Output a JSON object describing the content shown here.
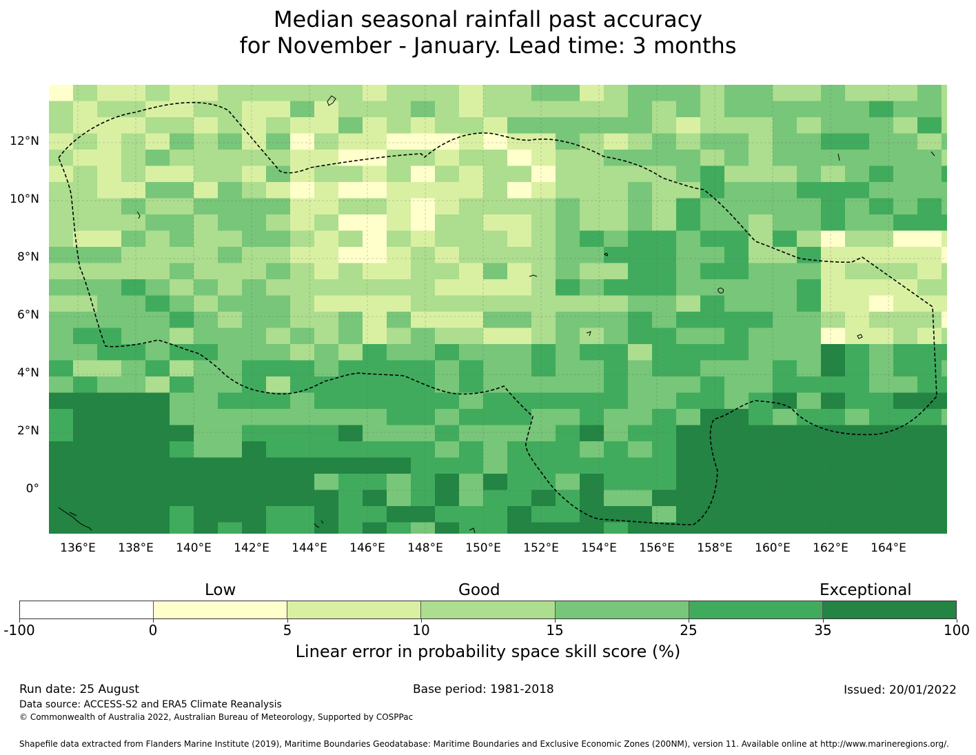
{
  "title": {
    "line1": "Median seasonal rainfall past accuracy",
    "line2": "for November - January. Lead time: 3 months"
  },
  "map": {
    "lat_labels": [
      "12°N",
      "10°N",
      "8°N",
      "6°N",
      "4°N",
      "2°N",
      "0°"
    ],
    "lon_labels": [
      "136°E",
      "138°E",
      "140°E",
      "142°E",
      "144°E",
      "146°E",
      "148°E",
      "150°E",
      "152°E",
      "154°E",
      "156°E",
      "158°E",
      "160°E",
      "162°E",
      "164°E"
    ],
    "extent": {
      "lon_min": 135,
      "lon_max": 166,
      "lat_min": -1.5,
      "lat_max": 14
    },
    "eez_boundary_style": "dashed black line"
  },
  "legend": {
    "categories": [
      "Low",
      "Good",
      "Exceptional"
    ],
    "ticks": [
      "-100",
      "0",
      "5",
      "10",
      "15",
      "25",
      "35",
      "100"
    ],
    "colors": [
      "#ffffff",
      "#ffffcc",
      "#d9f0a3",
      "#addd8e",
      "#78c679",
      "#41ab5d",
      "#238443"
    ],
    "caption": "Linear error in probability space skill score (%)"
  },
  "footer": {
    "run_date": "Run date: 25 August",
    "base_period": "Base period: 1981-2018",
    "issued": "Issued: 20/01/2022",
    "data_source": "Data source: ACCESS-S2 and ERA5 Climate Reanalysis",
    "copyright": "© Commonwealth of Australia 2022, Australian Bureau of Meteorology, Supported by COSPPac",
    "shapefile": "Shapefile data extracted from Flanders Marine Institute (2019), Maritime Boundaries Geodatabase: Maritime Boundaries and Exclusive Economic Zones (200NM), version 11. Available online at http://www.marineregions.org/."
  }
}
